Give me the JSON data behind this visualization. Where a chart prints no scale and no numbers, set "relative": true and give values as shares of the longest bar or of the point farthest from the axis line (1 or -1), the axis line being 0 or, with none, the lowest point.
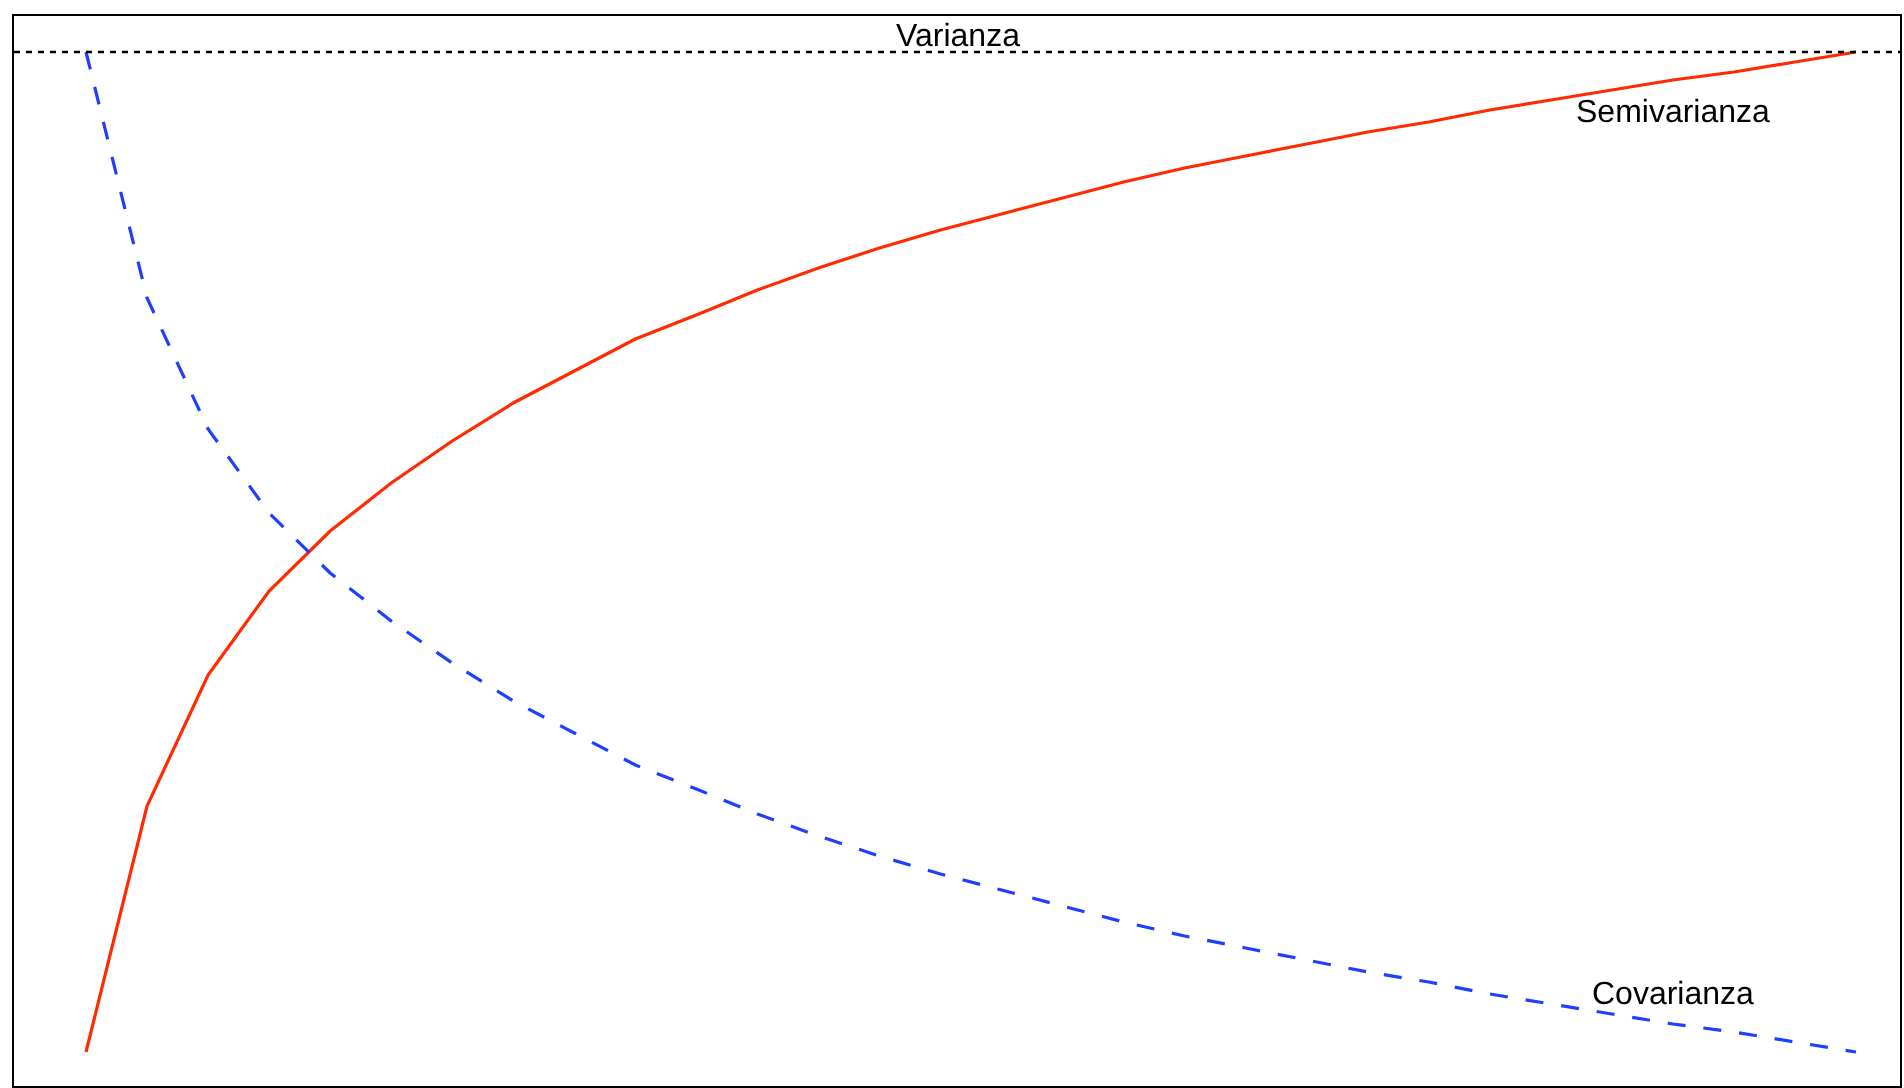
{
  "chart_data": {
    "type": "line",
    "relative": true,
    "categories": [
      null,
      null,
      null,
      null,
      null,
      null,
      null,
      null,
      null,
      null,
      null,
      null,
      null,
      null,
      null,
      null,
      null,
      null,
      null,
      null,
      null,
      null,
      null,
      null,
      null,
      null,
      null,
      null,
      null,
      null
    ],
    "series": [
      {
        "name": "Semivarianza",
        "color": "#ff2a00",
        "line_style": "solid",
        "values": [
          0,
          0.246,
          0.377,
          0.461,
          0.521,
          0.569,
          0.611,
          0.649,
          0.681,
          0.713,
          0.737,
          0.762,
          0.784,
          0.804,
          0.822,
          0.838,
          0.854,
          0.87,
          0.884,
          0.896,
          0.908,
          0.92,
          0.93,
          0.942,
          0.952,
          0.962,
          0.972,
          0.98,
          0.99,
          1
        ]
      },
      {
        "name": "Covarianza",
        "color": "#1f3fff",
        "line_style": "dashed",
        "values": [
          1,
          0.754,
          0.623,
          0.539,
          0.479,
          0.431,
          0.389,
          0.351,
          0.319,
          0.287,
          0.263,
          0.238,
          0.216,
          0.196,
          0.178,
          0.162,
          0.146,
          0.13,
          0.116,
          0.104,
          0.092,
          0.08,
          0.07,
          0.058,
          0.048,
          0.038,
          0.028,
          0.02,
          0.01,
          0
        ]
      }
    ],
    "ref_lines": [
      {
        "axis": "y",
        "value": 1,
        "label": "Varianza",
        "color": "#000000",
        "line_style": "dotted"
      }
    ],
    "legend": false,
    "marker": "none"
  }
}
